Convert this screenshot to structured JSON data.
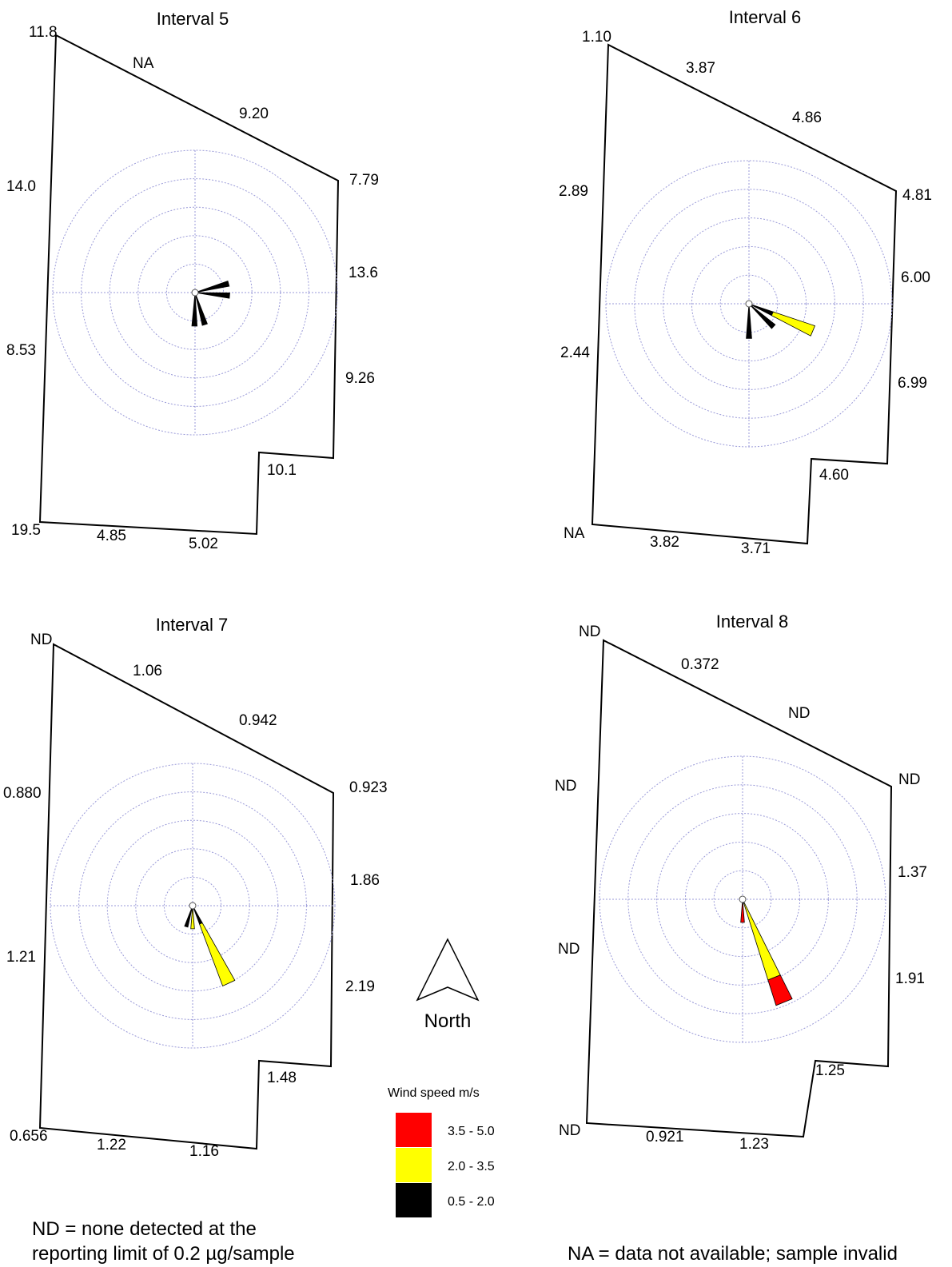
{
  "colors": {
    "speed_high": "#ff0000",
    "speed_mid": "#ffff00",
    "speed_low": "#000000",
    "grid": "#9a9ad8",
    "boundary": "#000000"
  },
  "panels": [
    {
      "title": "Interval 5",
      "labels": [
        "11.8",
        "NA",
        "9.20",
        "7.79",
        "14.0",
        "13.6",
        "8.53",
        "9.26",
        "10.1",
        "19.5",
        "4.85",
        "5.02"
      ],
      "petals": [
        {
          "bearing": 75,
          "bands": [
            {
              "class": "low",
              "length": 1.5
            }
          ]
        },
        {
          "bearing": 95,
          "bands": [
            {
              "class": "low",
              "length": 1.5
            }
          ]
        },
        {
          "bearing": 163,
          "bands": [
            {
              "class": "low",
              "length": 1.45
            }
          ]
        },
        {
          "bearing": 181,
          "bands": [
            {
              "class": "low",
              "length": 1.45
            }
          ]
        }
      ]
    },
    {
      "title": "Interval 6",
      "labels": [
        "1.10",
        "3.87",
        "4.86",
        "4.81",
        "2.89",
        "6.00",
        "2.44",
        "6.99",
        "4.60",
        "NA",
        "3.82",
        "3.71"
      ],
      "petals": [
        {
          "bearing": 113,
          "bands": [
            {
              "class": "low",
              "length": 1.1
            },
            {
              "class": "mid",
              "length": 1.9
            }
          ]
        },
        {
          "bearing": 133,
          "bands": [
            {
              "class": "low",
              "length": 1.45
            }
          ]
        },
        {
          "bearing": 180,
          "bands": [
            {
              "class": "low",
              "length": 1.5
            }
          ]
        }
      ]
    },
    {
      "title": "Interval 7",
      "labels": [
        "ND",
        "1.06",
        "0.942",
        "0.923",
        "0.880",
        "1.86",
        "1.21",
        "2.19",
        "1.48",
        "0.656",
        "1.22",
        "1.16"
      ],
      "petals": [
        {
          "bearing": 155,
          "bands": [
            {
              "class": "low",
              "length": 0.85
            },
            {
              "class": "mid",
              "length": 2.85
            }
          ]
        },
        {
          "bearing": 180,
          "bands": [
            {
              "class": "mid",
              "length": 1.0
            }
          ]
        },
        {
          "bearing": 197,
          "bands": [
            {
              "class": "low",
              "length": 0.95
            }
          ]
        }
      ]
    },
    {
      "title": "Interval 8",
      "labels": [
        "ND",
        "0.372",
        "ND",
        "ND",
        "ND",
        "1.37",
        "ND",
        "1.91",
        "1.25",
        "ND",
        "0.921",
        "1.23"
      ],
      "petals": [
        {
          "bearing": 158,
          "bands": [
            {
              "class": "mid",
              "length": 3.65
            },
            {
              "class": "high",
              "length": 1.15
            }
          ]
        },
        {
          "bearing": 180,
          "bands": [
            {
              "class": "high",
              "length": 1.0
            }
          ]
        }
      ]
    }
  ],
  "north_arrow": {
    "label": "North"
  },
  "legend": {
    "title": "Wind speed m/s",
    "items": [
      {
        "class": "high",
        "label": "3.5 - 5.0"
      },
      {
        "class": "mid",
        "label": "2.0 - 3.5"
      },
      {
        "class": "low",
        "label": "0.5 - 2.0"
      }
    ]
  },
  "notes": {
    "nd_line1": "ND = none detected at the",
    "nd_line2": "reporting limit of 0.2 µg/sample",
    "na": "NA = data not available; sample invalid"
  }
}
